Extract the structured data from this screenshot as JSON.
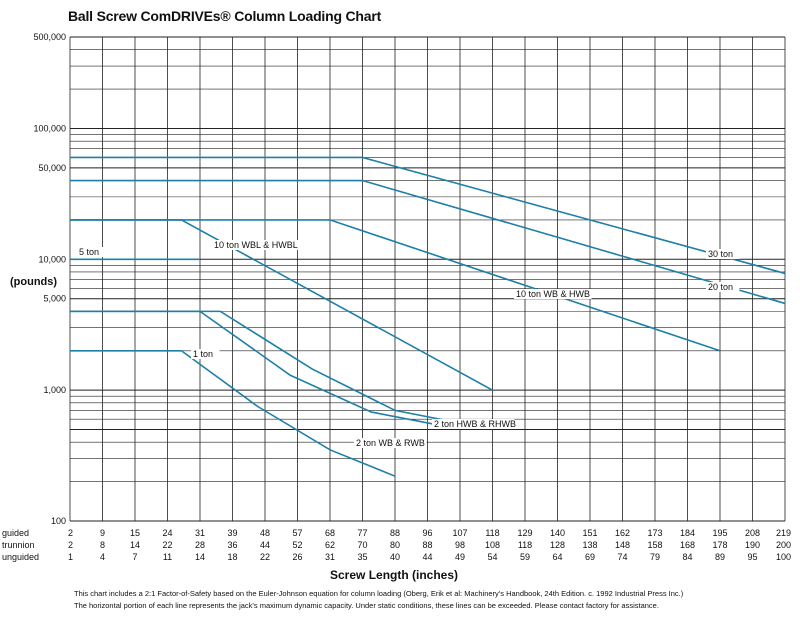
{
  "chart_data": {
    "type": "line",
    "title": "Ball Screw ComDRIVEs® Column Loading Chart",
    "ylabel": "(pounds)",
    "xlabel": "Screw Length (inches)",
    "y_scale": "log",
    "ylim": [
      100,
      500000
    ],
    "y_ticks": [
      "100",
      "1,000",
      "5,000",
      "10,000",
      "50,000",
      "100,000",
      "500,000"
    ],
    "x_axis_rows": [
      {
        "name": "guided",
        "values": [
          "2",
          "9",
          "15",
          "24",
          "31",
          "39",
          "48",
          "57",
          "68",
          "77",
          "88",
          "96",
          "107",
          "118",
          "129",
          "140",
          "151",
          "162",
          "173",
          "184",
          "195",
          "208",
          "219"
        ]
      },
      {
        "name": "trunnion",
        "values": [
          "2",
          "8",
          "14",
          "22",
          "28",
          "36",
          "44",
          "52",
          "62",
          "70",
          "80",
          "88",
          "98",
          "108",
          "118",
          "128",
          "138",
          "148",
          "158",
          "168",
          "178",
          "190",
          "200"
        ]
      },
      {
        "name": "unguided",
        "values": [
          "1",
          "4",
          "7",
          "11",
          "14",
          "18",
          "22",
          "26",
          "31",
          "35",
          "40",
          "44",
          "49",
          "54",
          "59",
          "64",
          "69",
          "74",
          "79",
          "84",
          "89",
          "95",
          "100"
        ]
      }
    ],
    "series": [
      {
        "name": "30 ton",
        "x": [
          2,
          77,
          219
        ],
        "y": [
          60000,
          60000,
          7800
        ]
      },
      {
        "name": "20 ton",
        "x": [
          2,
          77,
          219
        ],
        "y": [
          40000,
          40000,
          4600
        ]
      },
      {
        "name": "10 ton WB & HWB",
        "x": [
          2,
          68,
          195
        ],
        "y": [
          20000,
          20000,
          2000
        ]
      },
      {
        "name": "10 ton WBL & HWBL",
        "x": [
          2,
          27,
          118
        ],
        "y": [
          20000,
          20000,
          1000
        ]
      },
      {
        "name": "5 ton",
        "x": [
          2,
          31
        ],
        "y": [
          10000,
          10000
        ]
      },
      {
        "name": "2 ton HWB & RHWB",
        "x": [
          2,
          36,
          62,
          88,
          107
        ],
        "y": [
          4000,
          4000,
          1450,
          700,
          560
        ]
      },
      {
        "name": "2 ton WB & RWB",
        "x": [
          2,
          31,
          55,
          80,
          100
        ],
        "y": [
          4000,
          4000,
          1300,
          680,
          540
        ]
      },
      {
        "name": "1 ton",
        "x": [
          2,
          27,
          46,
          68,
          88
        ],
        "y": [
          2000,
          2000,
          750,
          350,
          220
        ]
      }
    ],
    "annotations": [
      "30 ton",
      "20 ton",
      "10 ton WB & HWB",
      "10 ton WBL & HWBL",
      "5 ton",
      "2 ton HWB & RHWB",
      "2 ton WB & RWB",
      "1 ton"
    ],
    "grid": true,
    "line_color": "#1e7fa8"
  },
  "footnotes": [
    "This chart includes a 2:1 Factor-of-Safety based on the Euler-Johnson equation for column loading (Oberg, Erik et al: Machinery's Handbook, 24th Edition. c. 1992 Industrial Press Inc.)",
    "The horizontal portion of each line represents the jack's maximum dynamic capacity. Under static conditions, these lines can be exceeded. Please contact factory for assistance."
  ]
}
